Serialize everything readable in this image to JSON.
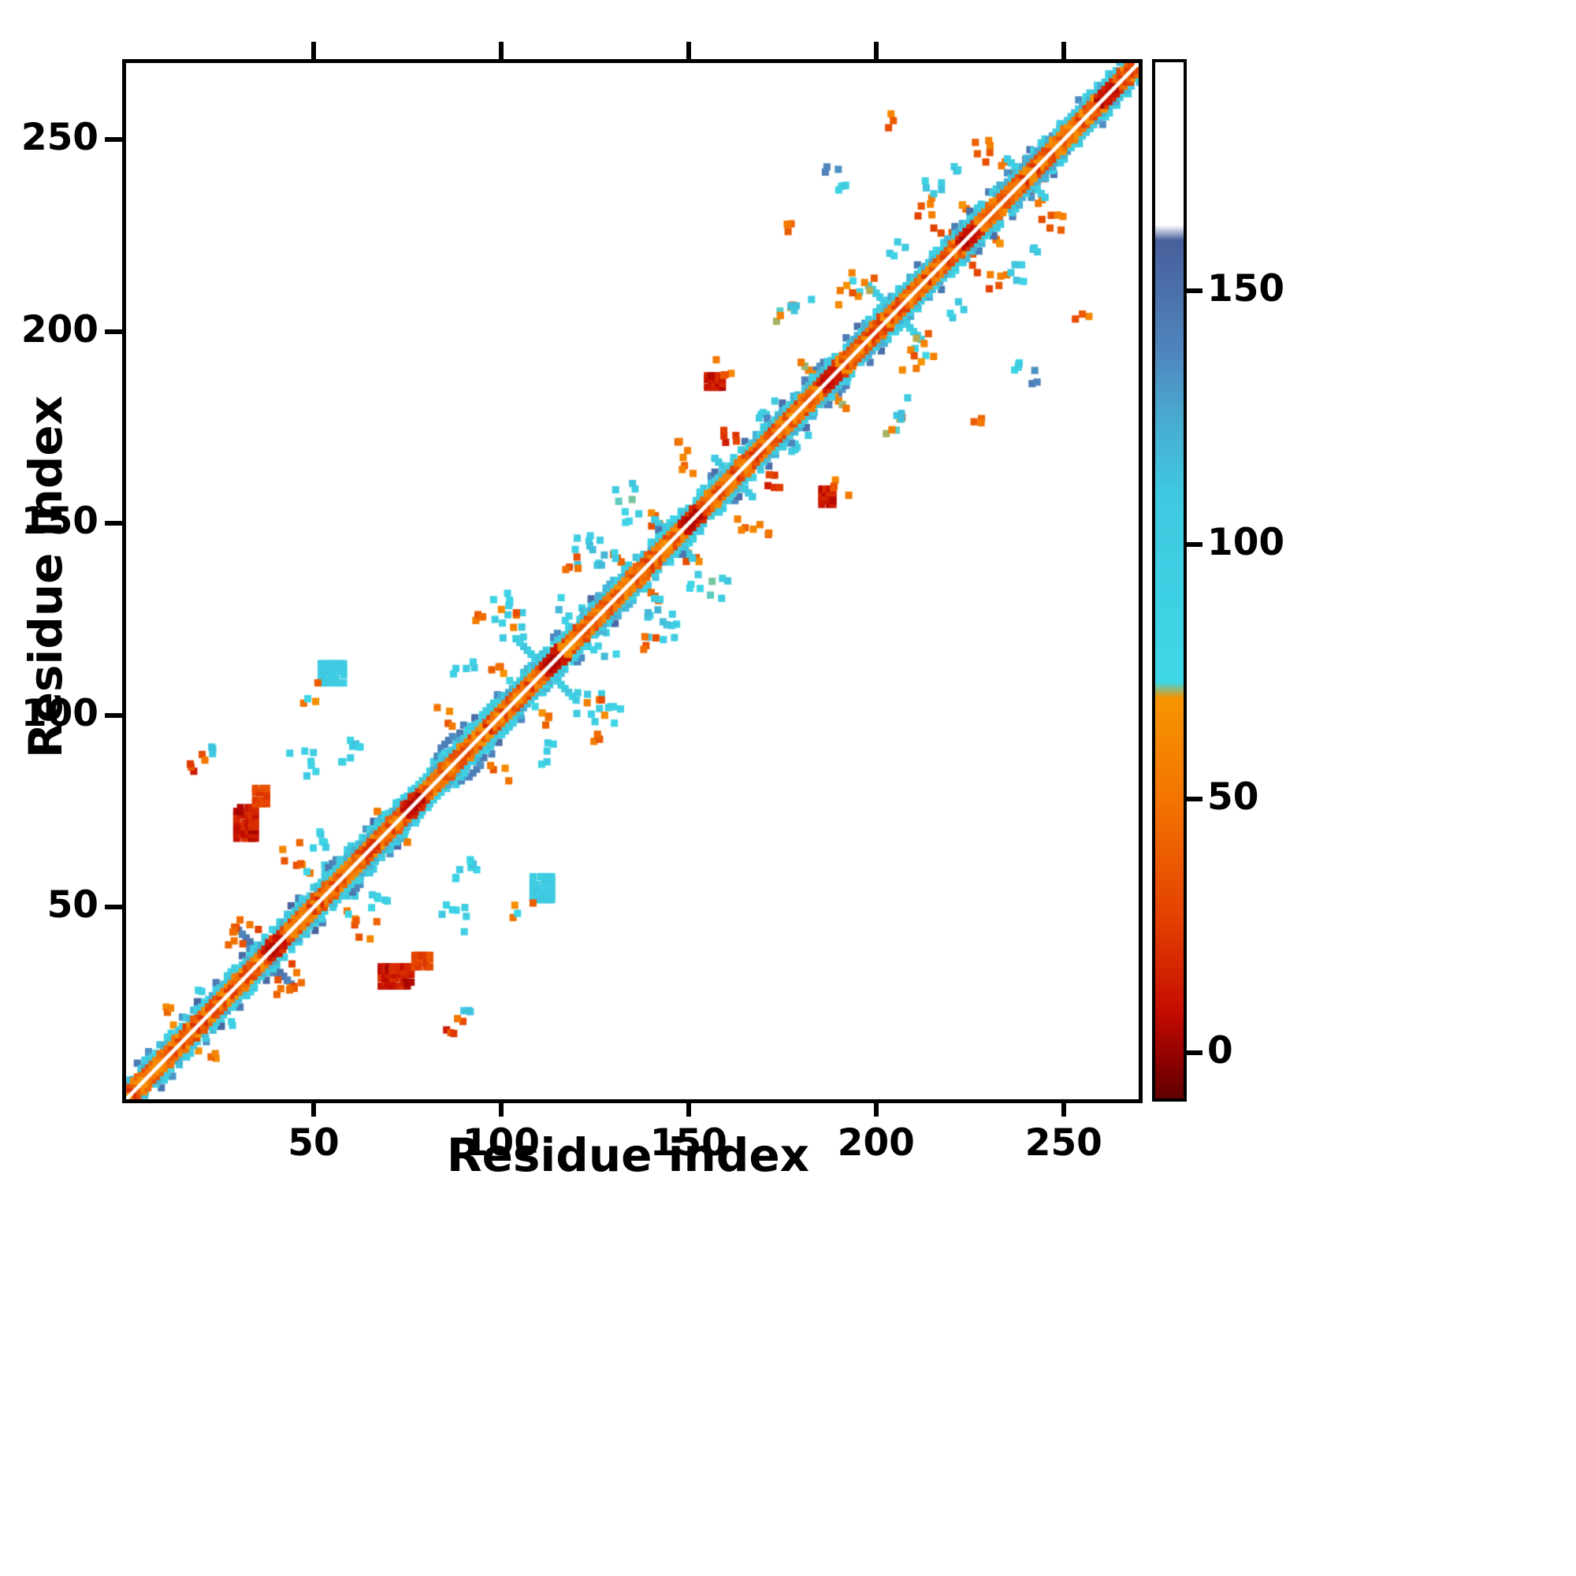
{
  "chart_data": {
    "type": "heatmap",
    "title": "",
    "xlabel": "Residue index",
    "ylabel": "Residue index",
    "xlim": [
      0,
      270
    ],
    "ylim": [
      0,
      270
    ],
    "x_ticks": [
      50,
      100,
      150,
      200,
      250
    ],
    "y_ticks": [
      50,
      100,
      150,
      200,
      250
    ],
    "grid": false,
    "legend": "none",
    "symmetric": true,
    "background": "#ffffff",
    "frame_color": "#000000",
    "colorbar": {
      "min": -9,
      "max": 195,
      "ticks": [
        0,
        50,
        100,
        150
      ],
      "position": "right"
    },
    "colormap_stops": [
      [
        -9,
        "#5f0000"
      ],
      [
        -2,
        "#8a0000"
      ],
      [
        8,
        "#c40c00"
      ],
      [
        25,
        "#e23d00"
      ],
      [
        50,
        "#f37400"
      ],
      [
        70,
        "#f69500"
      ],
      [
        73,
        "#3ed7e7"
      ],
      [
        110,
        "#3fc9e0"
      ],
      [
        126,
        "#49a8d0"
      ],
      [
        138,
        "#4f85bd"
      ],
      [
        160,
        "#485f9b"
      ],
      [
        163,
        "#ffffff"
      ],
      [
        195,
        "#ffffff"
      ]
    ],
    "seed": 42,
    "cell_units": 1.9,
    "diag_band": {
      "inner_v_min": 18,
      "inner_v_max": 68,
      "outer_v_min": 85,
      "outer_v_max": 125,
      "blue_v_min": 128,
      "blue_v_max": 158,
      "red_v_min": 3,
      "red_v_max": 13
    },
    "features": [
      {
        "t": "a",
        "x": 37,
        "y": 37,
        "len": 15,
        "v": 142,
        "vj": 8
      },
      {
        "t": "s",
        "x": 33,
        "y": 44,
        "r": 4,
        "n": 6,
        "v": 48,
        "vj": 22
      },
      {
        "t": "s",
        "x": 43,
        "y": 30,
        "r": 3,
        "n": 4,
        "v": 40,
        "vj": 20
      },
      {
        "t": "d",
        "i0": 50,
        "i1": 62,
        "off": 4.5,
        "v": 103,
        "vj": 15,
        "p": 0.7
      },
      {
        "t": "d",
        "i0": 52,
        "i1": 60,
        "off": 6,
        "v": 100,
        "vj": 15,
        "p": 0.5
      },
      {
        "t": "a",
        "x": 57,
        "y": 57,
        "len": 9,
        "v": 104,
        "vj": 10
      },
      {
        "t": "s",
        "x": 45,
        "y": 63,
        "r": 5,
        "n": 8,
        "v": 52,
        "vj": 24
      },
      {
        "t": "s",
        "x": 50,
        "y": 68,
        "r": 4,
        "n": 6,
        "v": 96,
        "vj": 18
      },
      {
        "t": "b",
        "x": 72,
        "y": 32,
        "w": 8,
        "h": 5,
        "v": 12,
        "vj": 10
      },
      {
        "t": "b",
        "x": 79,
        "y": 36,
        "w": 4,
        "h": 3,
        "v": 30,
        "vj": 10
      },
      {
        "t": "s",
        "x": 20,
        "y": 88,
        "r": 3,
        "n": 5,
        "v": 30,
        "vj": 22
      },
      {
        "t": "s",
        "x": 24,
        "y": 90,
        "r": 2,
        "n": 3,
        "v": 100,
        "vj": 15
      },
      {
        "t": "b",
        "x": 55,
        "y": 111,
        "w": 6,
        "h": 5,
        "v": 103,
        "vj": 8
      },
      {
        "t": "s",
        "x": 50,
        "y": 106,
        "r": 3,
        "n": 4,
        "v": 55,
        "vj": 20
      },
      {
        "t": "s",
        "x": 47,
        "y": 88,
        "r": 4,
        "n": 7,
        "v": 98,
        "vj": 18
      },
      {
        "t": "a",
        "x": 71,
        "y": 71,
        "len": 9,
        "v": 52,
        "vj": 18
      },
      {
        "t": "d",
        "i0": 66,
        "i1": 76,
        "off": 4.5,
        "v": 100,
        "vj": 14,
        "p": 0.6
      },
      {
        "t": "d",
        "i0": 80,
        "i1": 93,
        "off": 4.5,
        "v": 102,
        "vj": 14,
        "p": 0.65
      },
      {
        "t": "d",
        "i0": 82,
        "i1": 92,
        "off": 6,
        "v": 98,
        "vj": 14,
        "p": 0.45
      },
      {
        "t": "d",
        "i0": 84,
        "i1": 90,
        "off": 7.5,
        "v": 138,
        "vj": 10,
        "p": 0.6
      },
      {
        "t": "s",
        "x": 60,
        "y": 92,
        "r": 3,
        "n": 5,
        "v": 98,
        "vj": 18
      },
      {
        "t": "d",
        "i0": 93,
        "i1": 99,
        "off": 1.7,
        "v": 8,
        "vj": 5,
        "p": 1
      },
      {
        "t": "s",
        "x": 84,
        "y": 100,
        "r": 3,
        "n": 4,
        "v": 52,
        "vj": 20
      },
      {
        "t": "s",
        "x": 90,
        "y": 113,
        "r": 3,
        "n": 5,
        "v": 96,
        "vj": 20
      },
      {
        "t": "a",
        "x": 112,
        "y": 112,
        "len": 17,
        "v": 100,
        "vj": 12
      },
      {
        "t": "d",
        "i0": 106,
        "i1": 118,
        "off": 5,
        "v": 103,
        "vj": 12,
        "p": 0.55
      },
      {
        "t": "d",
        "i0": 105,
        "i1": 117,
        "off": 3,
        "v": 46,
        "vj": 15,
        "p": 0.8
      },
      {
        "t": "s",
        "x": 104,
        "y": 122,
        "r": 5,
        "n": 9,
        "v": 70,
        "vj": 40
      },
      {
        "t": "s",
        "x": 118,
        "y": 127,
        "r": 4,
        "n": 6,
        "v": 98,
        "vj": 25
      },
      {
        "t": "s",
        "x": 101,
        "y": 129,
        "r": 4,
        "n": 7,
        "v": 90,
        "vj": 28
      },
      {
        "t": "s",
        "x": 96,
        "y": 125,
        "r": 3,
        "n": 4,
        "v": 48,
        "vj": 20
      },
      {
        "t": "s",
        "x": 110,
        "y": 100,
        "r": 3,
        "n": 5,
        "v": 55,
        "vj": 25
      },
      {
        "t": "s",
        "x": 123,
        "y": 143,
        "r": 4,
        "n": 6,
        "v": 95,
        "vj": 25
      },
      {
        "t": "s",
        "x": 118,
        "y": 139,
        "r": 3,
        "n": 4,
        "v": 42,
        "vj": 18
      },
      {
        "t": "a",
        "x": 136,
        "y": 136,
        "len": 13,
        "v": 60,
        "vj": 25
      },
      {
        "t": "s",
        "x": 128,
        "y": 143,
        "r": 5,
        "n": 8,
        "v": 95,
        "vj": 25
      },
      {
        "t": "s",
        "x": 143,
        "y": 150,
        "r": 3,
        "n": 5,
        "v": 52,
        "vj": 22
      },
      {
        "t": "a",
        "x": 146,
        "y": 146,
        "len": 10,
        "v": 104,
        "vj": 10
      },
      {
        "t": "s",
        "x": 133,
        "y": 158,
        "r": 3,
        "n": 5,
        "v": 94,
        "vj": 22
      },
      {
        "t": "s",
        "x": 150,
        "y": 165,
        "r": 2,
        "n": 3,
        "v": 46,
        "vj": 15
      },
      {
        "t": "a",
        "x": 162,
        "y": 162,
        "len": 10,
        "v": 100,
        "vj": 12
      },
      {
        "t": "s",
        "x": 162,
        "y": 172,
        "r": 3,
        "n": 5,
        "v": 20,
        "vj": 14
      },
      {
        "t": "b",
        "x": 157,
        "y": 187,
        "w": 4,
        "h": 3,
        "v": 12,
        "vj": 8
      },
      {
        "t": "s",
        "x": 160,
        "y": 190,
        "r": 3,
        "n": 4,
        "v": 45,
        "vj": 18
      },
      {
        "t": "s",
        "x": 150,
        "y": 170,
        "r": 3,
        "n": 4,
        "v": 50,
        "vj": 20
      },
      {
        "t": "s",
        "x": 170,
        "y": 180,
        "r": 4,
        "n": 6,
        "v": 95,
        "vj": 22
      },
      {
        "t": "d",
        "i0": 178,
        "i1": 190,
        "off": 4.5,
        "v": 102,
        "vj": 13,
        "p": 0.6
      },
      {
        "t": "d",
        "i0": 181,
        "i1": 187,
        "off": 6,
        "v": 138,
        "vj": 10,
        "p": 0.5
      },
      {
        "t": "a",
        "x": 186,
        "y": 186,
        "len": 12,
        "v": 55,
        "vj": 20
      },
      {
        "t": "s",
        "x": 175,
        "y": 205,
        "r": 3,
        "n": 5,
        "v": 55,
        "vj": 24
      },
      {
        "t": "s",
        "x": 180,
        "y": 208,
        "r": 3,
        "n": 4,
        "v": 98,
        "vj": 18
      },
      {
        "t": "a",
        "x": 205,
        "y": 205,
        "len": 14,
        "v": 100,
        "vj": 12
      },
      {
        "t": "s",
        "x": 197,
        "y": 213,
        "r": 4,
        "n": 7,
        "v": 60,
        "vj": 30
      },
      {
        "t": "s",
        "x": 192,
        "y": 210,
        "r": 3,
        "n": 4,
        "v": 50,
        "vj": 20
      },
      {
        "t": "s",
        "x": 205,
        "y": 222,
        "r": 3,
        "n": 4,
        "v": 95,
        "vj": 20
      },
      {
        "t": "s",
        "x": 212,
        "y": 232,
        "r": 3,
        "n": 5,
        "v": 45,
        "vj": 20
      },
      {
        "t": "s",
        "x": 220,
        "y": 240,
        "r": 3,
        "n": 4,
        "v": 95,
        "vj": 25
      },
      {
        "t": "s",
        "x": 232,
        "y": 245,
        "r": 3,
        "n": 4,
        "v": 45,
        "vj": 20
      },
      {
        "t": "s",
        "x": 243,
        "y": 238,
        "r": 2,
        "n": 3,
        "v": 15,
        "vj": 10
      },
      {
        "t": "s",
        "x": 248,
        "y": 228,
        "r": 3,
        "n": 4,
        "v": 50,
        "vj": 20
      },
      {
        "t": "s",
        "x": 238,
        "y": 215,
        "r": 3,
        "n": 4,
        "v": 95,
        "vj": 20
      },
      {
        "t": "s",
        "x": 225,
        "y": 218,
        "r": 3,
        "n": 4,
        "v": 50,
        "vj": 25
      },
      {
        "t": "s",
        "x": 205,
        "y": 255,
        "r": 2,
        "n": 3,
        "v": 45,
        "vj": 20
      },
      {
        "t": "s",
        "x": 190,
        "y": 238,
        "r": 2,
        "n": 4,
        "v": 95,
        "vj": 25
      },
      {
        "t": "s",
        "x": 188,
        "y": 243,
        "r": 2,
        "n": 3,
        "v": 140,
        "vj": 12
      },
      {
        "t": "s",
        "x": 178,
        "y": 228,
        "r": 2,
        "n": 3,
        "v": 45,
        "vj": 15
      },
      {
        "t": "a",
        "x": 228,
        "y": 228,
        "len": 10,
        "v": 60,
        "vj": 22
      },
      {
        "t": "a",
        "x": 240,
        "y": 240,
        "len": 10,
        "v": 100,
        "vj": 12
      },
      {
        "t": "d",
        "i0": 246,
        "i1": 258,
        "off": 4,
        "v": 138,
        "vj": 10,
        "p": 0.75
      },
      {
        "t": "d",
        "i0": 236,
        "i1": 241,
        "off": 1.7,
        "v": 8,
        "vj": 4,
        "p": 1
      },
      {
        "t": "d",
        "i0": 2,
        "i1": 14,
        "off": 3.2,
        "v": 95,
        "vj": 15,
        "p": 0.7
      },
      {
        "t": "s",
        "x": 12,
        "y": 22,
        "r": 3,
        "n": 4,
        "v": 50,
        "vj": 20
      },
      {
        "t": "s",
        "x": 27,
        "y": 20,
        "r": 2,
        "n": 3,
        "v": 95,
        "vj": 15
      },
      {
        "t": "s",
        "x": 135,
        "y": 152,
        "r": 2,
        "n": 4,
        "v": 92,
        "vj": 18
      },
      {
        "t": "s",
        "x": 88,
        "y": 58,
        "r": 2,
        "n": 3,
        "v": 100,
        "vj": 12
      }
    ]
  }
}
